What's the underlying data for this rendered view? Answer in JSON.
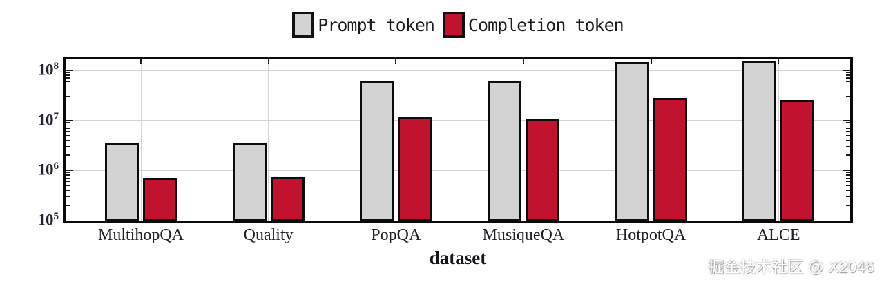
{
  "colors": {
    "prompt": "#d3d3d3",
    "completion": "#c11330",
    "grid": "#d4d4d4",
    "axis": "#0a0a0a"
  },
  "watermark": {
    "text": "掘金技术社区 @ X2046"
  },
  "chart_data": {
    "type": "bar",
    "title": "",
    "xlabel": "dataset",
    "ylabel": "",
    "yscale": "log",
    "ylim": [
      100000,
      166000000
    ],
    "ytick_base": "10",
    "ytick_exponents": [
      5,
      6,
      7,
      8
    ],
    "grid": true,
    "legend_position": "top",
    "categories": [
      "MultihopQA",
      "Quality",
      "PopQA",
      "MusiqueQA",
      "HotpotQA",
      "ALCE"
    ],
    "series": [
      {
        "name": "Prompt token",
        "color": "#d3d3d3",
        "values": [
          3600000,
          3600000,
          63000000,
          60000000,
          145000000,
          150000000
        ]
      },
      {
        "name": "Completion token",
        "color": "#c11330",
        "values": [
          720000,
          730000,
          11500000,
          11000000,
          28000000,
          26000000
        ]
      }
    ]
  }
}
